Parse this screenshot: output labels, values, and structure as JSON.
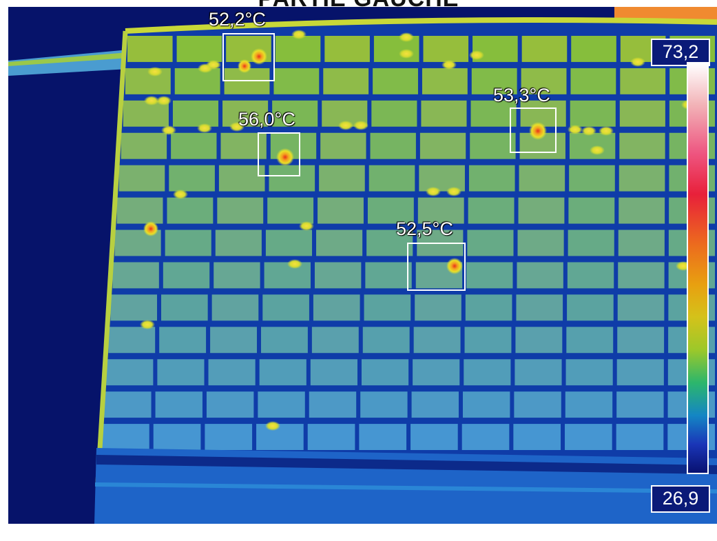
{
  "image": {
    "title": "PARTIE GAUCHE",
    "scale": {
      "max": "73,2",
      "min": "26,9"
    },
    "spots": [
      {
        "id": "spot-1",
        "label": "52,2°C"
      },
      {
        "id": "spot-2",
        "label": "56,0°C"
      },
      {
        "id": "spot-3",
        "label": "53,3°C"
      },
      {
        "id": "spot-4",
        "label": "52,5°C"
      }
    ],
    "colors": {
      "background": "#06136a",
      "panel_cool": "#1f7ad6",
      "panel_mid": "#39b06a",
      "panel_warm": "#8cc43a",
      "hotspot": "#f0d020",
      "hotspot_core": "#e8401a",
      "roof_hot": "#f08a30"
    }
  }
}
